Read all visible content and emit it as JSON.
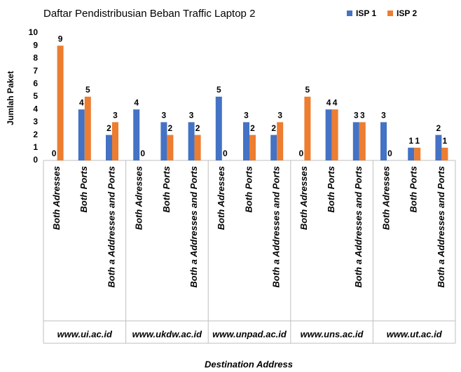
{
  "chart_data": {
    "type": "bar",
    "title": "Daftar Pendistribusian Beban Traffic Laptop 2",
    "x_label": "Destination Address",
    "y_label": "Jumlah Paket",
    "groups": [
      "www.ui.ac.id",
      "www.ukdw.ac.id",
      "www.unpad.ac.id",
      "www.uns.ac.id",
      "www.ut.ac.id"
    ],
    "categories": [
      "Both Adresses",
      "Both Ports",
      "Both a Addresses and Ports",
      "Both Adresses",
      "Both Ports",
      "Both a Addresses and Ports",
      "Both Adresses",
      "Both Ports",
      "Both a Addresses and Ports",
      "Both Adresses",
      "Both Ports",
      "Both a Addresses and Ports",
      "Both Adresses",
      "Both Ports",
      "Both a Addresses and Ports"
    ],
    "series": [
      {
        "name": "ISP 1",
        "color": "#4472c4",
        "values": [
          0,
          4,
          2,
          4,
          3,
          3,
          5,
          3,
          2,
          0,
          4,
          3,
          3,
          1,
          2
        ]
      },
      {
        "name": "ISP 2",
        "color": "#ed7d31",
        "values": [
          9,
          5,
          3,
          0,
          2,
          2,
          0,
          2,
          3,
          5,
          4,
          3,
          0,
          1,
          1
        ]
      }
    ],
    "ylim": [
      0,
      10
    ],
    "yticks": [
      0,
      1,
      2,
      3,
      4,
      5,
      6,
      7,
      8,
      9,
      10
    ],
    "grid": false,
    "legend": "top-right"
  }
}
